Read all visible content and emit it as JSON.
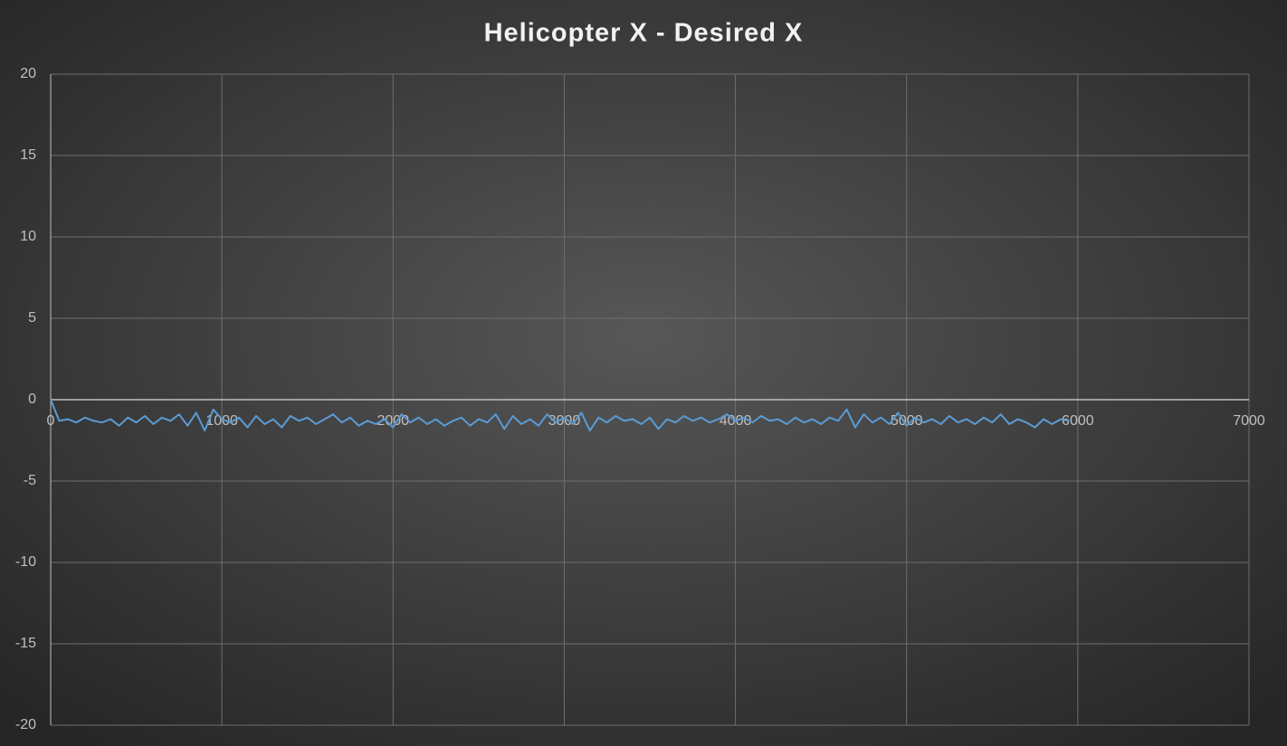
{
  "chart_data": {
    "type": "line",
    "title": "Helicopter X - Desired X",
    "x": [
      0,
      50,
      100,
      150,
      200,
      250,
      300,
      350,
      400,
      450,
      500,
      550,
      600,
      650,
      700,
      750,
      800,
      850,
      900,
      950,
      1000,
      1050,
      1100,
      1150,
      1200,
      1250,
      1300,
      1350,
      1400,
      1450,
      1500,
      1550,
      1600,
      1650,
      1700,
      1750,
      1800,
      1850,
      1900,
      1950,
      2000,
      2050,
      2100,
      2150,
      2200,
      2250,
      2300,
      2350,
      2400,
      2450,
      2500,
      2550,
      2600,
      2650,
      2700,
      2750,
      2800,
      2850,
      2900,
      2950,
      3000,
      3050,
      3100,
      3150,
      3200,
      3250,
      3300,
      3350,
      3400,
      3450,
      3500,
      3550,
      3600,
      3650,
      3700,
      3750,
      3800,
      3850,
      3900,
      3950,
      4000,
      4050,
      4100,
      4150,
      4200,
      4250,
      4300,
      4350,
      4400,
      4450,
      4500,
      4550,
      4600,
      4650,
      4700,
      4750,
      4800,
      4850,
      4900,
      4950,
      5000,
      5050,
      5100,
      5150,
      5200,
      5250,
      5300,
      5350,
      5400,
      5450,
      5500,
      5550,
      5600,
      5650,
      5700,
      5750,
      5800,
      5850,
      5900,
      5950
    ],
    "series": [
      {
        "name": "Helicopter X - Desired X",
        "color": "#5b9bd5",
        "values": [
          0,
          -1.3,
          -1.2,
          -1.4,
          -1.1,
          -1.3,
          -1.4,
          -1.2,
          -1.6,
          -1.1,
          -1.4,
          -1.0,
          -1.5,
          -1.1,
          -1.3,
          -0.9,
          -1.6,
          -0.8,
          -1.9,
          -0.6,
          -1.2,
          -1.4,
          -1.1,
          -1.7,
          -1.0,
          -1.5,
          -1.2,
          -1.7,
          -1.0,
          -1.3,
          -1.1,
          -1.5,
          -1.2,
          -0.9,
          -1.4,
          -1.1,
          -1.6,
          -1.3,
          -1.5,
          -1.2,
          -1.7,
          -0.9,
          -1.4,
          -1.1,
          -1.5,
          -1.2,
          -1.6,
          -1.3,
          -1.1,
          -1.6,
          -1.2,
          -1.4,
          -0.9,
          -1.8,
          -1.0,
          -1.5,
          -1.2,
          -1.6,
          -0.9,
          -1.4,
          -1.1,
          -1.5,
          -0.8,
          -1.9,
          -1.1,
          -1.4,
          -1.0,
          -1.3,
          -1.2,
          -1.5,
          -1.1,
          -1.8,
          -1.2,
          -1.4,
          -1.0,
          -1.3,
          -1.1,
          -1.4,
          -1.2,
          -0.9,
          -1.3,
          -1.1,
          -1.4,
          -1.0,
          -1.3,
          -1.2,
          -1.5,
          -1.1,
          -1.4,
          -1.2,
          -1.5,
          -1.1,
          -1.3,
          -0.6,
          -1.7,
          -0.9,
          -1.4,
          -1.1,
          -1.5,
          -0.8,
          -1.6,
          -1.1,
          -1.4,
          -1.2,
          -1.5,
          -1.0,
          -1.4,
          -1.2,
          -1.5,
          -1.1,
          -1.4,
          -0.9,
          -1.5,
          -1.2,
          -1.4,
          -1.7,
          -1.2,
          -1.5,
          -1.2,
          -1.3
        ]
      }
    ],
    "xlim": [
      0,
      7000
    ],
    "xticks": [
      0,
      1000,
      2000,
      3000,
      4000,
      5000,
      6000,
      7000
    ],
    "ylim": [
      -20,
      20
    ],
    "yticks": [
      -20,
      -15,
      -10,
      -5,
      0,
      5,
      10,
      15,
      20
    ],
    "grid": true
  }
}
